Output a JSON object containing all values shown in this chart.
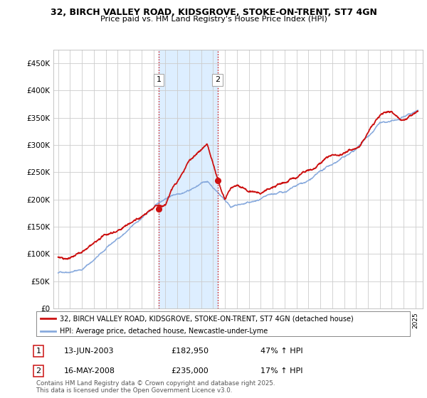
{
  "title": "32, BIRCH VALLEY ROAD, KIDSGROVE, STOKE-ON-TRENT, ST7 4GN",
  "subtitle": "Price paid vs. HM Land Registry's House Price Index (HPI)",
  "ytick_values": [
    0,
    50000,
    100000,
    150000,
    200000,
    250000,
    300000,
    350000,
    400000,
    450000
  ],
  "ylabel_ticks": [
    "£0",
    "£50K",
    "£100K",
    "£150K",
    "£200K",
    "£250K",
    "£300K",
    "£350K",
    "£400K",
    "£450K"
  ],
  "ylim": [
    0,
    475000
  ],
  "xlim_start": 1994.6,
  "xlim_end": 2025.6,
  "purchase1_x": 2003.45,
  "purchase1_y": 182950,
  "purchase1_label": "1",
  "purchase2_x": 2008.37,
  "purchase2_y": 235000,
  "purchase2_label": "2",
  "hpi_line_color": "#88aadd",
  "price_line_color": "#cc1111",
  "shaded_color": "#ddeeff",
  "grid_color": "#cccccc",
  "legend_label1": "32, BIRCH VALLEY ROAD, KIDSGROVE, STOKE-ON-TRENT, ST7 4GN (detached house)",
  "legend_label2": "HPI: Average price, detached house, Newcastle-under-Lyme",
  "annotation1_label": "1",
  "annotation1_date": "13-JUN-2003",
  "annotation1_price": "£182,950",
  "annotation1_hpi": "47% ↑ HPI",
  "annotation2_label": "2",
  "annotation2_date": "16-MAY-2008",
  "annotation2_price": "£235,000",
  "annotation2_hpi": "17% ↑ HPI",
  "footnote": "Contains HM Land Registry data © Crown copyright and database right 2025.\nThis data is licensed under the Open Government Licence v3.0."
}
